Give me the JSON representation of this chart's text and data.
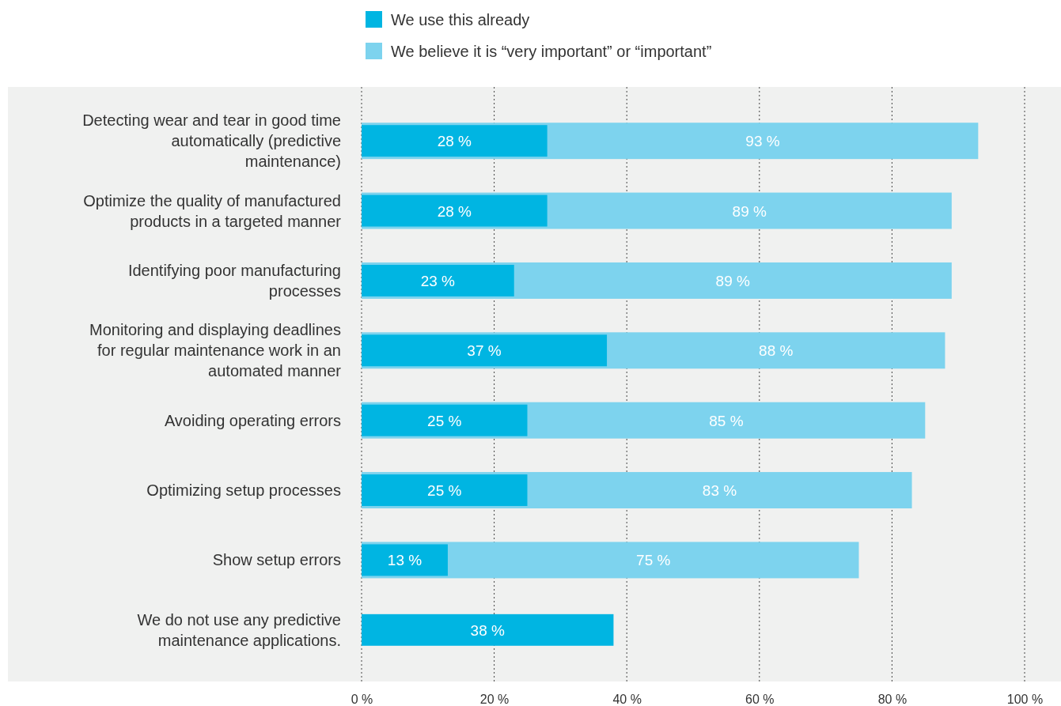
{
  "chart_data": {
    "type": "bar",
    "orientation": "horizontal",
    "categories": [
      "Detecting wear and tear in good time automatically (predictive maintenance)",
      "Optimize the quality of manufactured products in a targeted manner",
      "Identifying poor manufacturing processes",
      "Monitoring and displaying deadlines for regular maintenance work in an automated manner",
      "Avoiding operating errors",
      "Optimizing setup processes",
      "Show setup errors",
      "We do not use any predictive maintenance applications."
    ],
    "series": [
      {
        "name": "We use this already",
        "color": "#00b5e2",
        "values": [
          28,
          28,
          23,
          37,
          25,
          25,
          13,
          38
        ],
        "value_labels": [
          "28 %",
          "28 %",
          "23 %",
          "37 %",
          "25 %",
          "25 %",
          "13 %",
          "38 %"
        ]
      },
      {
        "name": "We believe it is “very important” or “important”",
        "color": "#7dd3ee",
        "values": [
          93,
          89,
          89,
          88,
          85,
          83,
          75,
          null
        ],
        "value_labels": [
          "93 %",
          "89 %",
          "89 %",
          "88 %",
          "85 %",
          "83 %",
          "75 %",
          null
        ]
      }
    ],
    "xlim": [
      0,
      100
    ],
    "xticks": [
      {
        "value": 0,
        "label": "0 %"
      },
      {
        "value": 20,
        "label": "20 %"
      },
      {
        "value": 40,
        "label": "40 %"
      },
      {
        "value": 60,
        "label": "60 %"
      },
      {
        "value": 80,
        "label": "80 %"
      },
      {
        "value": 100,
        "label": "100 %"
      }
    ],
    "grid": "x",
    "legend": "top"
  }
}
